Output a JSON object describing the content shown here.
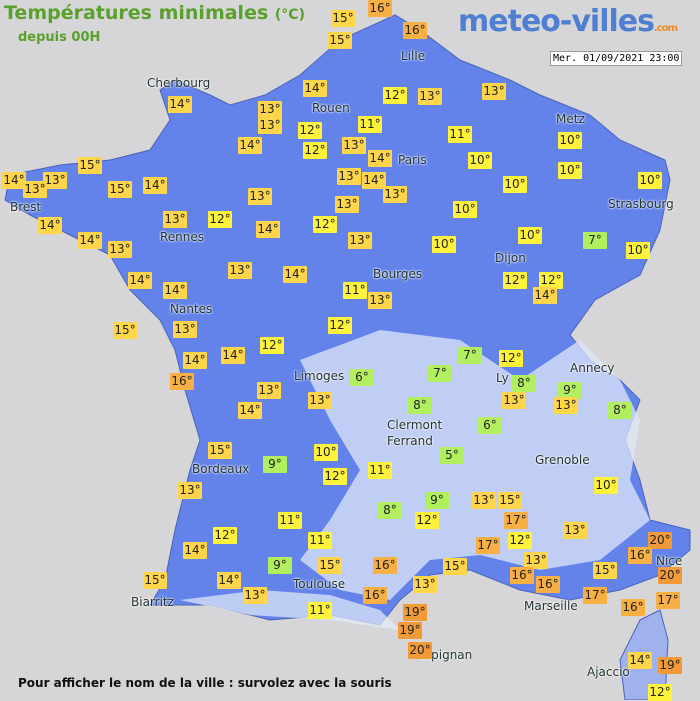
{
  "header": {
    "title": "Températures minimales",
    "unit": "(°C)",
    "subtitle": "depuis 00H",
    "logo": "meteo-villes",
    "logo_suffix": ".com",
    "timestamp": "Mer. 01/09/2021 23:00"
  },
  "cities": [
    "Cherbourg",
    "Rouen",
    "Lille",
    "Paris",
    "Metz",
    "Strasbourg",
    "Brest",
    "Rennes",
    "Dijon",
    "Bourges",
    "Nantes",
    "Annecy",
    "Limoges",
    "Ly",
    "Clermont",
    "Ferrand",
    "Grenoble",
    "Bordeaux",
    "Toulouse",
    "Biarritz",
    "Marseille",
    "Nice",
    "Perpignan",
    "Ajaccio"
  ],
  "readings": [
    "15°",
    "16°",
    "15°",
    "16°",
    "14°",
    "14°",
    "13°",
    "12°",
    "13°",
    "13°",
    "13°",
    "12°",
    "11°",
    "14°",
    "12°",
    "13°",
    "11°",
    "10°",
    "15°",
    "14°",
    "13°",
    "13°",
    "15°",
    "14°",
    "14°",
    "10°",
    "10°",
    "13°",
    "14°",
    "13°",
    "10°",
    "10°",
    "13°",
    "13°",
    "10°",
    "14°",
    "13°",
    "12°",
    "14°",
    "12°",
    "10°",
    "7°",
    "14°",
    "13°",
    "13°",
    "10°",
    "10°",
    "13°",
    "14°",
    "14°",
    "14°",
    "12°",
    "12°",
    "14°",
    "11°",
    "13°",
    "15°",
    "13°",
    "12°",
    "12°",
    "7°",
    "12°",
    "14°",
    "14°",
    "6°",
    "7°",
    "8°",
    "9°",
    "16°",
    "13°",
    "13°",
    "8°",
    "13°",
    "13°",
    "8°",
    "14°",
    "6°",
    "15°",
    "5°",
    "10°",
    "9°",
    "12°",
    "11°",
    "10°",
    "13°",
    "13°",
    "15°",
    "9°",
    "8°",
    "12°",
    "17°",
    "13°",
    "11°",
    "12°",
    "11°",
    "17°",
    "12°",
    "20°",
    "14°",
    "9°",
    "15°",
    "16°",
    "15°",
    "13°",
    "16°",
    "16°",
    "15°",
    "20°",
    "15°",
    "14°",
    "13°",
    "13°",
    "16°",
    "17°",
    "17°",
    "16°",
    "19°",
    "11°",
    "16°",
    "19°",
    "20°",
    "14°",
    "19°",
    "12°"
  ],
  "footer": "Pour afficher le nom de la ville : survolez avec la souris"
}
